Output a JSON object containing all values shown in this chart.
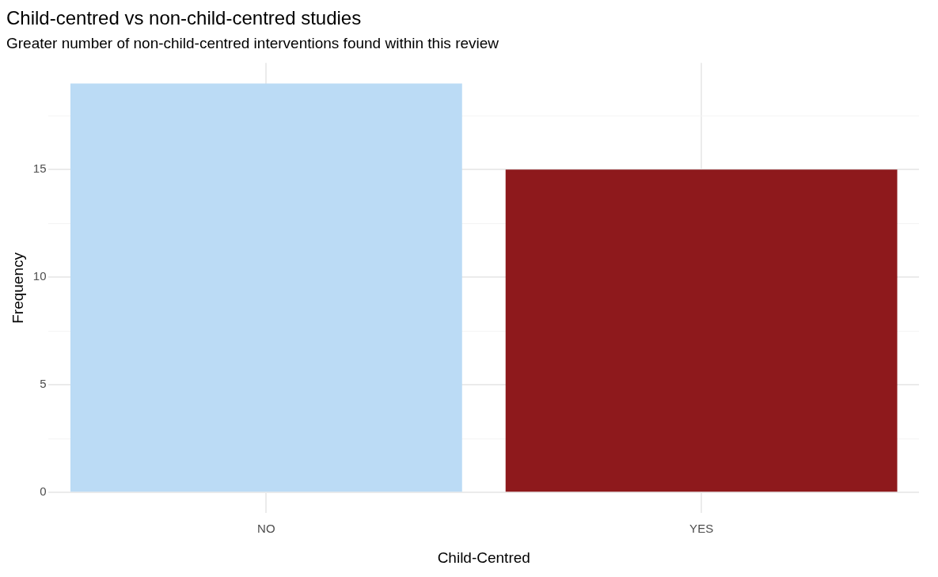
{
  "chart_data": {
    "type": "bar",
    "title": "Child-centred vs non-child-centred studies",
    "subtitle": "Greater number of non-child-centred interventions found within this review",
    "xlabel": "Child-Centred",
    "ylabel": "Frequency",
    "categories": [
      "NO",
      "YES"
    ],
    "values": [
      19,
      15
    ],
    "colors": [
      "#bbdbf5",
      "#8e191c"
    ],
    "ylim": [
      -0.95,
      19.95
    ],
    "yticks": [
      0,
      {
        "value": 2.5,
        "label": null
      },
      5,
      {
        "value": 7.5,
        "label": null
      },
      10,
      {
        "value": 12.5,
        "label": null
      },
      15,
      {
        "value": 17.5,
        "label": null
      }
    ],
    "grid": true,
    "legend": false
  }
}
